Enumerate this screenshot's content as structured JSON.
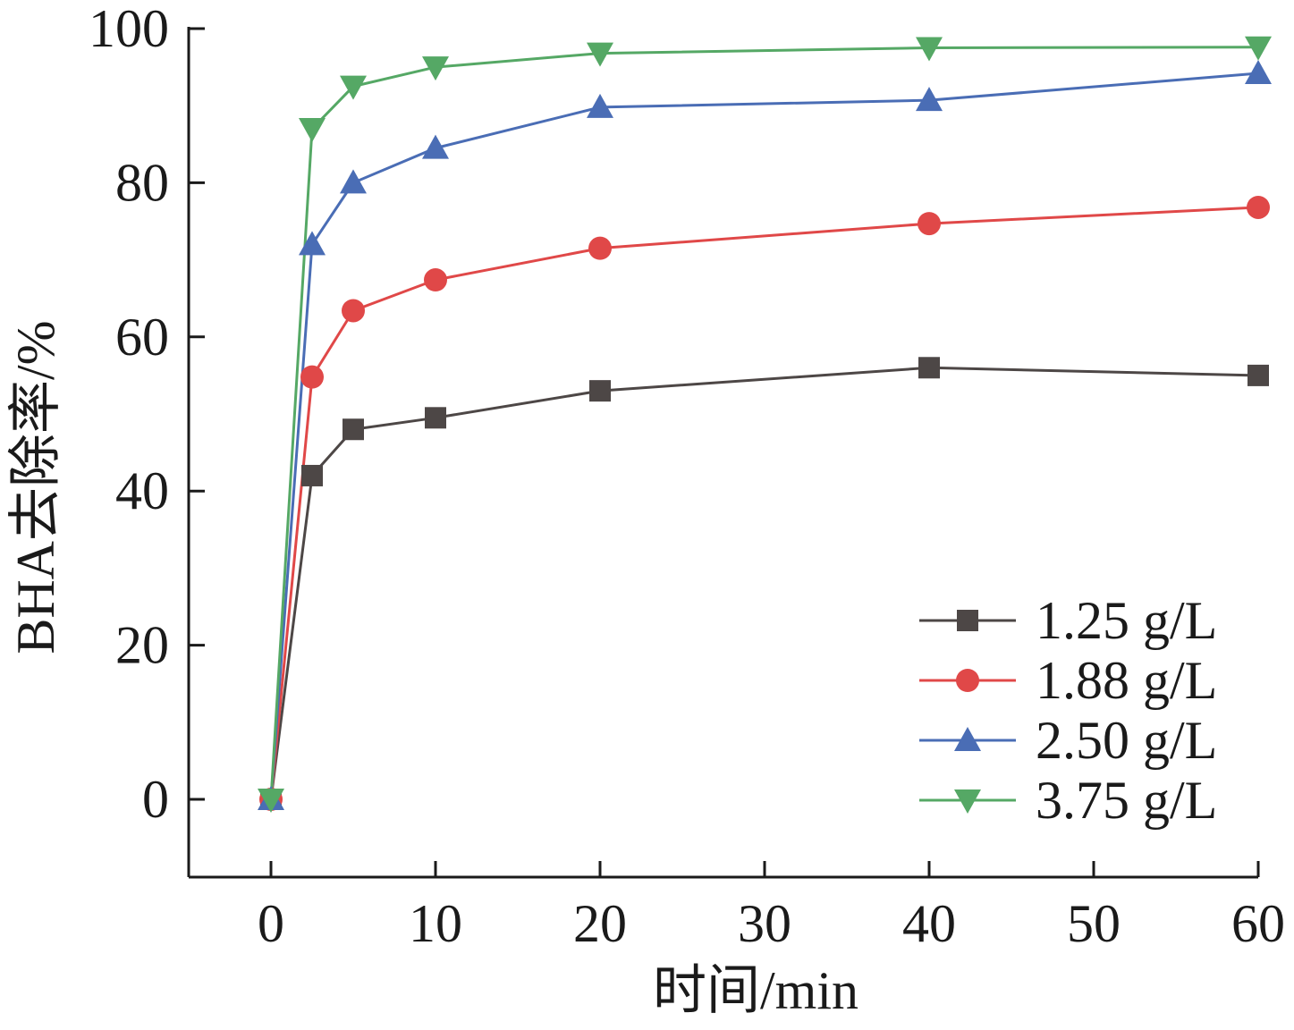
{
  "chart_data": {
    "type": "line",
    "title": "",
    "xlabel": "时间/min",
    "ylabel": "BHA去除率/%",
    "xlim": [
      -5,
      60
    ],
    "ylim": [
      -10,
      100
    ],
    "xticks": [
      0,
      10,
      20,
      30,
      40,
      50,
      60
    ],
    "yticks": [
      0,
      20,
      40,
      60,
      80,
      100
    ],
    "grid": false,
    "legend_position": "bottom-right",
    "x": [
      0,
      2.5,
      5,
      10,
      20,
      40,
      60
    ],
    "series": [
      {
        "name": "1.25 g/L",
        "color": "#4d4746",
        "marker": "square",
        "values": [
          0,
          42.0,
          48.0,
          49.5,
          53.0,
          56.0,
          55.0
        ]
      },
      {
        "name": "1.88 g/L",
        "color": "#e04848",
        "marker": "circle",
        "values": [
          0,
          54.8,
          63.4,
          67.4,
          71.5,
          74.7,
          76.8
        ]
      },
      {
        "name": "2.50 g/L",
        "color": "#4a6db5",
        "marker": "triangle-up",
        "values": [
          0,
          72.0,
          80.0,
          84.5,
          89.8,
          90.7,
          94.2
        ]
      },
      {
        "name": "3.75 g/L",
        "color": "#55a865",
        "marker": "triangle-down",
        "values": [
          0,
          87.0,
          92.5,
          95.0,
          96.8,
          97.5,
          97.6
        ]
      }
    ]
  }
}
